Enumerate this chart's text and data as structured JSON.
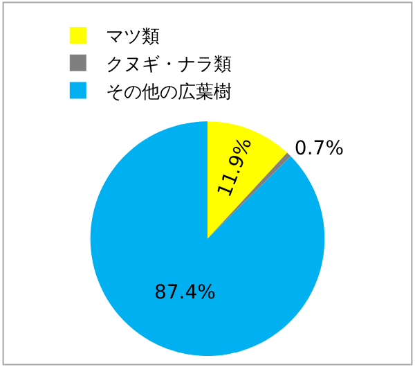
{
  "chart_data": {
    "type": "pie",
    "categories": [
      "マツ類",
      "クヌギ・ナラ類",
      "その他の広葉樹"
    ],
    "values": [
      11.9,
      0.7,
      87.4
    ],
    "colors": [
      "#ffff00",
      "#7f7f7f",
      "#00b0f0"
    ],
    "value_labels": [
      "11.9%",
      "0.7%",
      "87.4%"
    ],
    "legend": "top left"
  }
}
